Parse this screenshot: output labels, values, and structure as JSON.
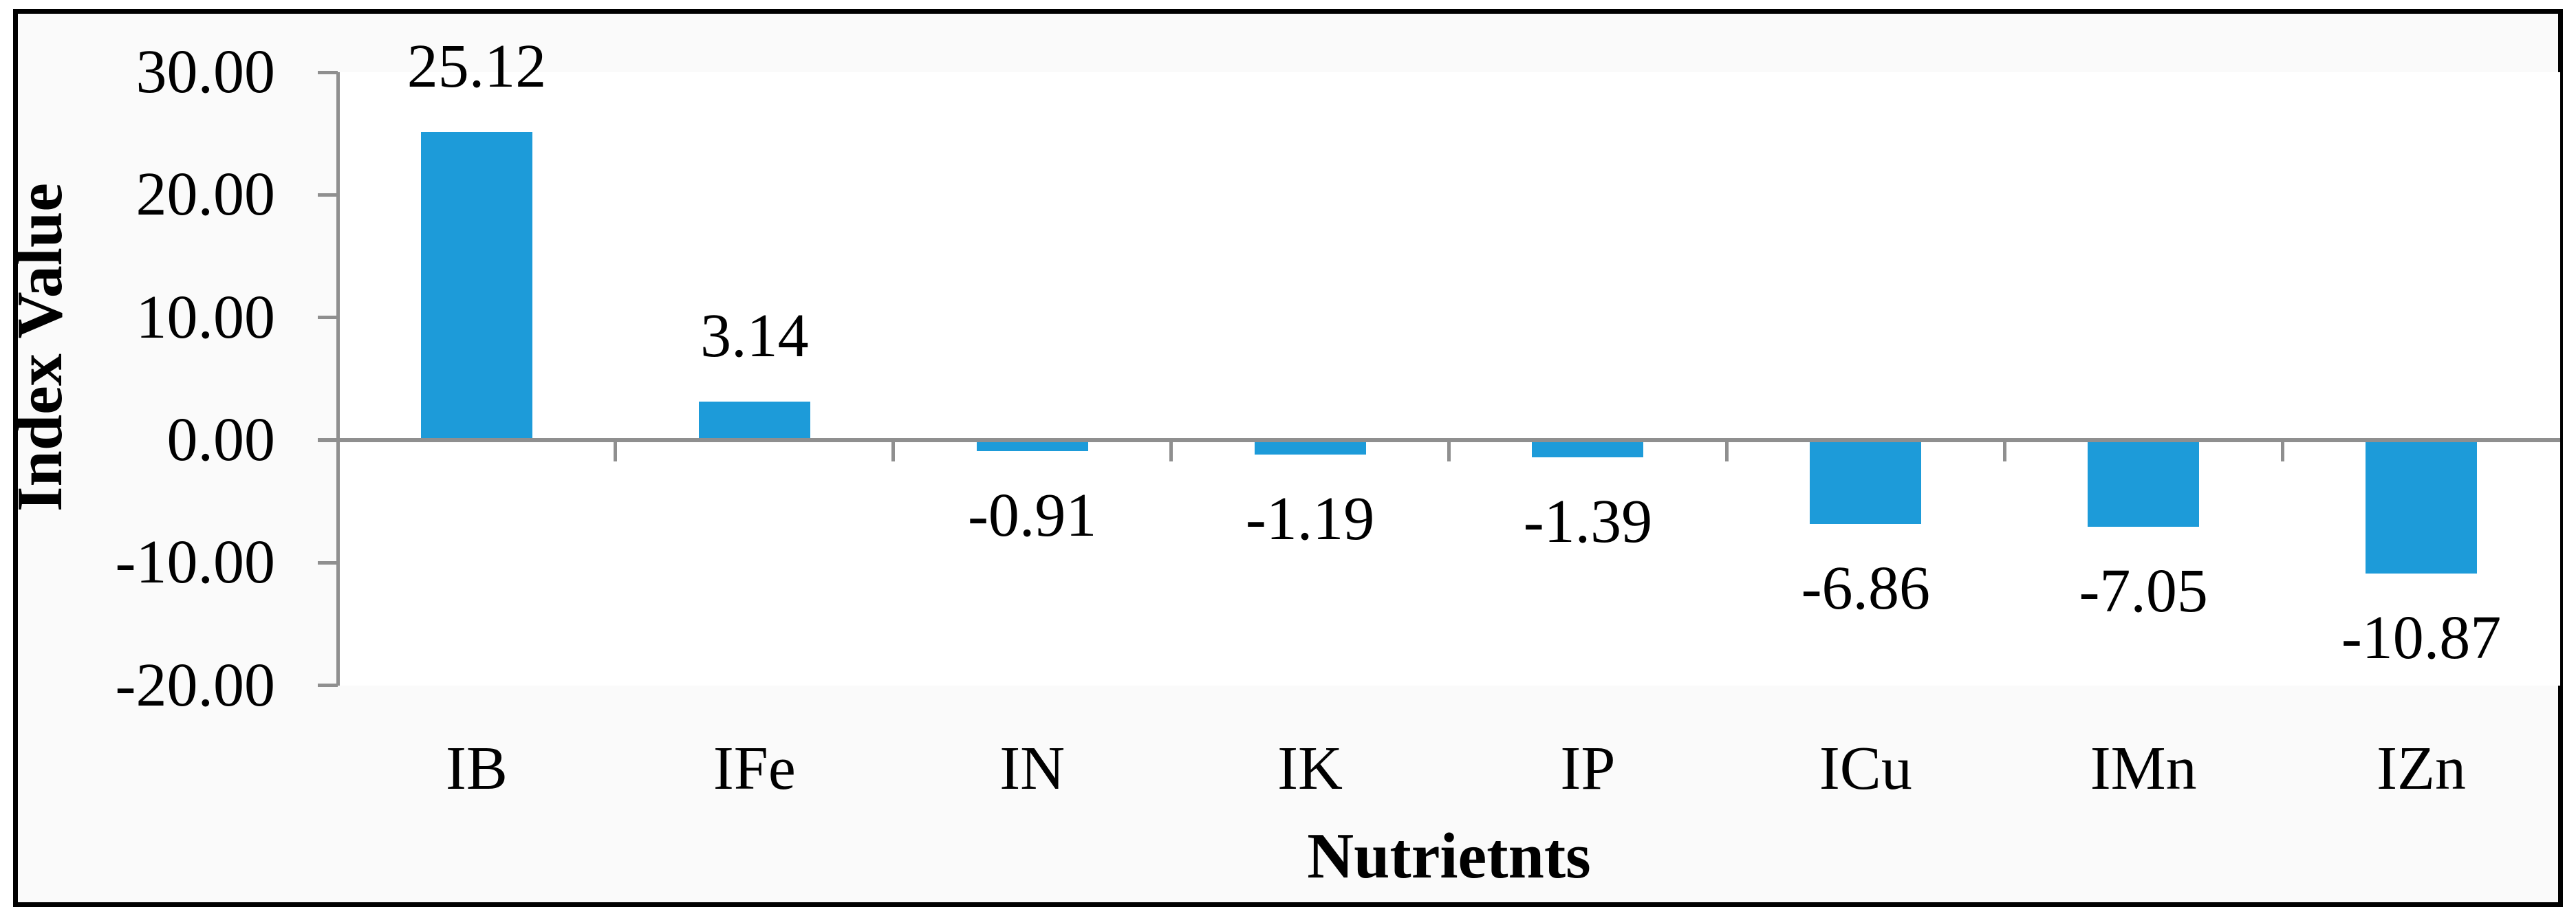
{
  "figure": {
    "border_color": "#000000",
    "outer_background": "#ffffff",
    "chart_background": "#fafafa",
    "plot_background": "#ffffff"
  },
  "chart_data": {
    "type": "bar",
    "title": "",
    "categories": [
      "IB",
      "IFe",
      "IN",
      "IK",
      "IP",
      "ICu",
      "IMn",
      "IZn"
    ],
    "values": [
      25.12,
      3.14,
      -0.91,
      -1.19,
      -1.39,
      -6.86,
      -7.05,
      -10.87
    ],
    "data_labels": [
      "25.12",
      "3.14",
      "-0.91",
      "-1.19",
      "-1.39",
      "-6.86",
      "-7.05",
      "-10.87"
    ],
    "xlabel": "Nutrietnts",
    "ylabel": "Index Value",
    "ylim": [
      -20,
      30
    ],
    "yticks": [
      30,
      20,
      10,
      0,
      -10,
      -20
    ],
    "ytick_labels": [
      "30.00",
      "20.00",
      "10.00",
      "0.00",
      "-10.00",
      "-20.00"
    ],
    "bar_color": "#1d9bd9",
    "axis_color": "#8f8f8f",
    "text_color": "#000000",
    "grid": false,
    "legend": false,
    "data_label_position": "outside-end"
  }
}
